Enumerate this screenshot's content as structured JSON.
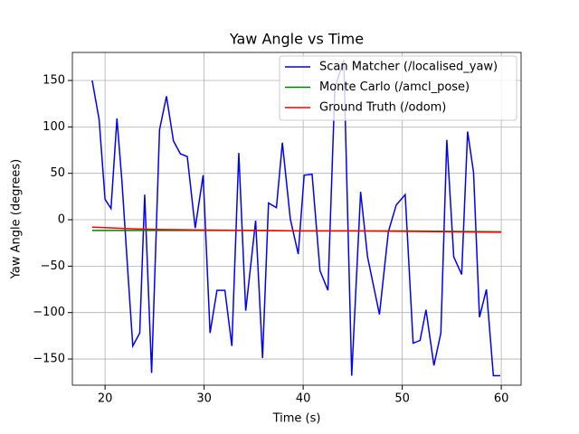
{
  "chart_data": {
    "type": "line",
    "title": "Yaw Angle vs Time",
    "x_label": "Time (s)",
    "y_label": "Yaw Angle (degrees)",
    "xlim": [
      16.7,
      62.0
    ],
    "ylim": [
      -178.2,
      180.2
    ],
    "xticks": [
      20,
      30,
      40,
      50,
      60
    ],
    "yticks": [
      {
        "value": -150,
        "label": "−150"
      },
      {
        "value": -100,
        "label": "−100"
      },
      {
        "value": -50,
        "label": "−50"
      },
      0,
      50,
      100,
      150
    ],
    "grid": true,
    "legend_position": "upper right",
    "series": [
      {
        "name": "Scan Matcher (/localised_yaw)",
        "color": "#0000ff",
        "x": [
          18.7,
          19.4,
          20.0,
          20.6,
          21.2,
          21.7,
          22.3,
          22.8,
          23.5,
          24.0,
          24.7,
          25.5,
          26.2,
          26.9,
          27.6,
          28.3,
          29.1,
          29.9,
          30.6,
          31.3,
          32.1,
          32.8,
          33.5,
          34.2,
          35.2,
          35.9,
          36.5,
          37.3,
          37.9,
          38.7,
          39.5,
          40.1,
          40.9,
          41.7,
          42.5,
          43.2,
          44.1,
          44.9,
          45.8,
          46.5,
          47.7,
          48.6,
          49.4,
          50.3,
          51.1,
          51.8,
          52.4,
          53.2,
          53.9,
          54.5,
          55.2,
          56.0,
          56.6,
          57.2,
          57.8,
          58.5,
          59.2,
          59.9
        ],
        "values": [
          150,
          108,
          22,
          12,
          109,
          42,
          -56,
          -136,
          -122,
          27,
          -165,
          97,
          133,
          85,
          71,
          68,
          -9,
          48,
          -122,
          -76,
          -76,
          -136,
          72,
          -98,
          -1,
          -149,
          18,
          13,
          83,
          1,
          -37,
          48,
          49,
          -55,
          -76,
          142,
          172,
          -168,
          30,
          -40,
          -102,
          -13,
          16,
          27,
          -133,
          -130,
          -97,
          -157,
          -122,
          86,
          -40,
          -59,
          95,
          51,
          -105,
          -75,
          -168,
          -168
        ]
      },
      {
        "name": "Monte Carlo (/amcl_pose)",
        "color": "#008000",
        "x": [
          18.7,
          25,
          30,
          35,
          40,
          45,
          50,
          55,
          60
        ],
        "values": [
          -11.5,
          -11.5,
          -11.5,
          -11.5,
          -12,
          -12,
          -12,
          -12.5,
          -13
        ]
      },
      {
        "name": "Ground Truth (/odom)",
        "color": "#ff0000",
        "x": [
          18.7,
          20,
          22,
          25,
          30,
          35,
          40,
          45,
          50,
          55,
          60
        ],
        "values": [
          -8,
          -8.5,
          -9.5,
          -10.5,
          -11,
          -11.5,
          -12,
          -12,
          -12.5,
          -13,
          -13.5
        ]
      }
    ]
  }
}
